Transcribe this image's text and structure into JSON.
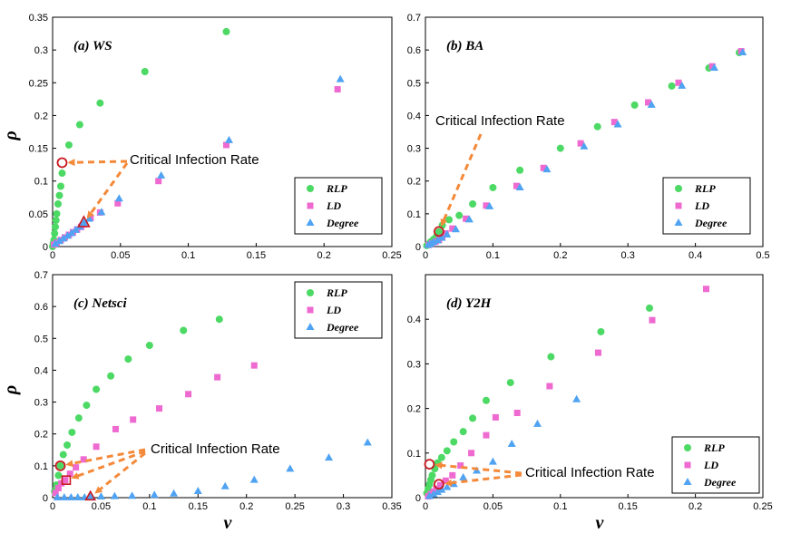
{
  "colors": {
    "rlp": "#4cd964",
    "ld": "#ee6ad1",
    "degree": "#4fa3f2",
    "arrow": "#f4893a",
    "highlight": "#c8171e"
  },
  "legend_labels": [
    "RLP",
    "LD",
    "Degree"
  ],
  "annotation": "Critical Infection Rate",
  "chart_data": [
    {
      "type": "scatter",
      "title": "(a) WS",
      "xlabel": "",
      "ylabel": "ρ",
      "xlim": [
        0,
        0.25
      ],
      "ylim": [
        0,
        0.35
      ],
      "xticks": [
        "0",
        "0.05",
        "0.1",
        "0.15",
        "0.2",
        "0.25"
      ],
      "yticks": [
        "0",
        "0.05",
        "0.1",
        "0.15",
        "0.2",
        "0.25",
        "0.3",
        "0.35"
      ],
      "series": [
        {
          "name": "RLP",
          "x": [
            0,
            0.0005,
            0.001,
            0.0015,
            0.002,
            0.0025,
            0.003,
            0.004,
            0.005,
            0.006,
            0.007,
            0.012,
            0.02,
            0.035,
            0.068,
            0.128
          ],
          "y": [
            0,
            0.005,
            0.01,
            0.02,
            0.03,
            0.04,
            0.05,
            0.065,
            0.078,
            0.092,
            0.112,
            0.155,
            0.186,
            0.219,
            0.267,
            0.328
          ]
        },
        {
          "name": "LD",
          "x": [
            0.001,
            0.003,
            0.006,
            0.009,
            0.012,
            0.015,
            0.018,
            0.021,
            0.023,
            0.028,
            0.035,
            0.048,
            0.078,
            0.128,
            0.21
          ],
          "y": [
            0.003,
            0.006,
            0.01,
            0.014,
            0.018,
            0.022,
            0.026,
            0.03,
            0.034,
            0.044,
            0.052,
            0.066,
            0.1,
            0.155,
            0.24
          ]
        },
        {
          "name": "Degree",
          "x": [
            0.002,
            0.005,
            0.008,
            0.011,
            0.014,
            0.017,
            0.02,
            0.023,
            0.027,
            0.036,
            0.049,
            0.08,
            0.13,
            0.212
          ],
          "y": [
            0.004,
            0.008,
            0.012,
            0.016,
            0.02,
            0.025,
            0.03,
            0.036,
            0.042,
            0.052,
            0.073,
            0.108,
            0.162,
            0.255
          ]
        }
      ],
      "critical_points": [
        {
          "x": 0.007,
          "y": 0.128
        },
        {
          "x": 0.023,
          "y": 0.036
        }
      ]
    },
    {
      "type": "scatter",
      "title": "(b) BA",
      "xlabel": "",
      "ylabel": "",
      "xlim": [
        0,
        0.5
      ],
      "ylim": [
        0,
        0.7
      ],
      "xticks": [
        "0",
        "0.1",
        "0.2",
        "0.3",
        "0.4",
        "0.5"
      ],
      "yticks": [
        "0",
        "0.1",
        "0.2",
        "0.3",
        "0.4",
        "0.5",
        "0.6",
        "0.7"
      ],
      "series": [
        {
          "name": "RLP",
          "x": [
            0.002,
            0.005,
            0.008,
            0.012,
            0.016,
            0.02,
            0.025,
            0.035,
            0.05,
            0.07,
            0.1,
            0.14,
            0.2,
            0.255,
            0.31,
            0.365,
            0.42,
            0.465
          ],
          "y": [
            0.003,
            0.008,
            0.015,
            0.022,
            0.03,
            0.045,
            0.065,
            0.082,
            0.095,
            0.13,
            0.18,
            0.233,
            0.3,
            0.366,
            0.432,
            0.49,
            0.545,
            0.592
          ]
        },
        {
          "name": "LD",
          "x": [
            0.005,
            0.01,
            0.015,
            0.02,
            0.025,
            0.03,
            0.04,
            0.06,
            0.09,
            0.135,
            0.175,
            0.23,
            0.28,
            0.33,
            0.375,
            0.425,
            0.468
          ],
          "y": [
            0.005,
            0.01,
            0.015,
            0.02,
            0.028,
            0.04,
            0.055,
            0.085,
            0.125,
            0.185,
            0.24,
            0.315,
            0.38,
            0.44,
            0.5,
            0.55,
            0.596
          ]
        },
        {
          "name": "Degree",
          "x": [
            0.004,
            0.008,
            0.012,
            0.018,
            0.024,
            0.032,
            0.045,
            0.065,
            0.095,
            0.14,
            0.18,
            0.235,
            0.285,
            0.335,
            0.38,
            0.428,
            0.47
          ],
          "y": [
            0.004,
            0.008,
            0.013,
            0.018,
            0.026,
            0.036,
            0.052,
            0.082,
            0.122,
            0.18,
            0.235,
            0.305,
            0.372,
            0.432,
            0.49,
            0.545,
            0.592
          ]
        }
      ],
      "critical_points": [
        {
          "x": 0.02,
          "y": 0.046
        }
      ]
    },
    {
      "type": "scatter",
      "title": "(c) Netsci",
      "xlabel": "ν",
      "ylabel": "ρ",
      "xlim": [
        0,
        0.35
      ],
      "ylim": [
        0,
        0.7
      ],
      "xticks": [
        "0",
        "0.05",
        "0.1",
        "0.15",
        "0.2",
        "0.25",
        "0.3",
        "0.35"
      ],
      "yticks": [
        "0",
        "0.1",
        "0.2",
        "0.3",
        "0.4",
        "0.5",
        "0.6",
        "0.7"
      ],
      "series": [
        {
          "name": "RLP",
          "x": [
            0.002,
            0.004,
            0.006,
            0.008,
            0.011,
            0.015,
            0.02,
            0.027,
            0.035,
            0.045,
            0.06,
            0.078,
            0.1,
            0.135,
            0.172
          ],
          "y": [
            0.02,
            0.04,
            0.07,
            0.1,
            0.135,
            0.165,
            0.205,
            0.25,
            0.29,
            0.34,
            0.382,
            0.435,
            0.478,
            0.525,
            0.56
          ]
        },
        {
          "name": "LD",
          "x": [
            0.003,
            0.006,
            0.009,
            0.013,
            0.018,
            0.024,
            0.032,
            0.045,
            0.065,
            0.083,
            0.11,
            0.14,
            0.17,
            0.208
          ],
          "y": [
            0.015,
            0.03,
            0.045,
            0.055,
            0.075,
            0.095,
            0.12,
            0.16,
            0.215,
            0.245,
            0.28,
            0.325,
            0.378,
            0.415
          ]
        },
        {
          "name": "Degree",
          "x": [
            0.005,
            0.012,
            0.019,
            0.026,
            0.033,
            0.039,
            0.05,
            0.064,
            0.082,
            0.105,
            0.125,
            0.15,
            0.178,
            0.208,
            0.245,
            0.285,
            0.325
          ],
          "y": [
            0.0,
            0.0,
            0.0,
            0.0,
            0.0,
            0.002,
            0.003,
            0.004,
            0.005,
            0.008,
            0.012,
            0.02,
            0.035,
            0.055,
            0.09,
            0.125,
            0.172
          ]
        }
      ],
      "critical_points": [
        {
          "x": 0.008,
          "y": 0.1
        },
        {
          "x": 0.014,
          "y": 0.055
        },
        {
          "x": 0.039,
          "y": 0.002
        }
      ]
    },
    {
      "type": "scatter",
      "title": "(d) Y2H",
      "xlabel": "ν",
      "ylabel": "",
      "xlim": [
        0,
        0.25
      ],
      "ylim": [
        0,
        0.5
      ],
      "xticks": [
        "0",
        "0.05",
        "0.1",
        "0.15",
        "0.2",
        "0.25"
      ],
      "yticks": [
        "0",
        "0.1",
        "0.2",
        "0.3",
        "0.4"
      ],
      "series": [
        {
          "name": "RLP",
          "x": [
            0.001,
            0.002,
            0.003,
            0.004,
            0.005,
            0.007,
            0.009,
            0.012,
            0.016,
            0.021,
            0.028,
            0.035,
            0.045,
            0.063,
            0.093,
            0.13,
            0.166
          ],
          "y": [
            0.01,
            0.02,
            0.03,
            0.04,
            0.05,
            0.065,
            0.078,
            0.09,
            0.105,
            0.125,
            0.148,
            0.178,
            0.218,
            0.258,
            0.316,
            0.372,
            0.425
          ]
        },
        {
          "name": "LD",
          "x": [
            0.002,
            0.004,
            0.006,
            0.008,
            0.011,
            0.015,
            0.02,
            0.026,
            0.034,
            0.045,
            0.052,
            0.068,
            0.092,
            0.128,
            0.168,
            0.208
          ],
          "y": [
            0.003,
            0.008,
            0.013,
            0.02,
            0.028,
            0.038,
            0.05,
            0.072,
            0.1,
            0.14,
            0.18,
            0.19,
            0.25,
            0.325,
            0.398,
            0.468
          ]
        },
        {
          "name": "Degree",
          "x": [
            0.003,
            0.006,
            0.009,
            0.012,
            0.016,
            0.021,
            0.028,
            0.038,
            0.05,
            0.064,
            0.083,
            0.112
          ],
          "y": [
            0.003,
            0.007,
            0.012,
            0.017,
            0.023,
            0.03,
            0.045,
            0.06,
            0.08,
            0.12,
            0.165,
            0.22
          ]
        }
      ],
      "critical_points": [
        {
          "x": 0.003,
          "y": 0.075
        },
        {
          "x": 0.01,
          "y": 0.03
        }
      ]
    }
  ]
}
